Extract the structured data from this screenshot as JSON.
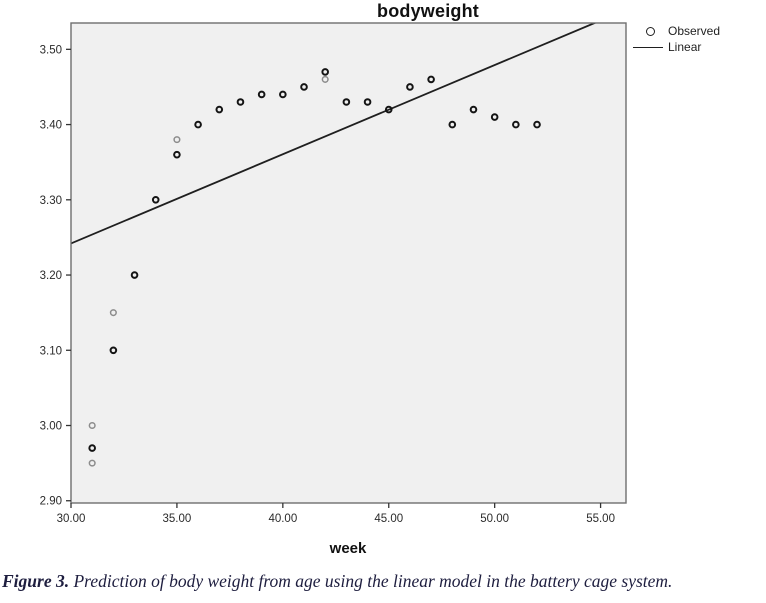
{
  "caption": {
    "label": "Figure 3.",
    "text": "Prediction of body weight from age using the linear model in the battery cage system."
  },
  "colors": {
    "plot_bg": "#f0f0f0",
    "plot_border": "#6e6e6e",
    "fit_line": "#1f1f1f",
    "marker_dark": "#141414",
    "marker_light": "#8c8c8c",
    "tick_mark": "#333333",
    "tick_text": "#2b2b2b"
  },
  "chart_data": {
    "type": "scatter",
    "title": "bodyweight",
    "xlabel": "week",
    "ylabel": "",
    "xlim": [
      30,
      56.2
    ],
    "ylim": [
      2.897,
      3.535
    ],
    "grid": false,
    "legend_position": "top-right-outside",
    "legend": [
      {
        "label": "Observed",
        "marker": "circle"
      },
      {
        "label": "Linear",
        "marker": "line"
      }
    ],
    "x_ticks": [
      "30.00",
      "35.00",
      "40.00",
      "45.00",
      "50.00",
      "55.00"
    ],
    "x_tick_values": [
      30,
      35,
      40,
      45,
      50,
      55
    ],
    "y_ticks": [
      "2.90",
      "3.00",
      "3.10",
      "3.20",
      "3.30",
      "3.40",
      "3.50"
    ],
    "y_tick_values": [
      2.9,
      3.0,
      3.1,
      3.2,
      3.3,
      3.4,
      3.5
    ],
    "series": [
      {
        "name": "Observed",
        "type": "scatter",
        "points": [
          {
            "x": 31,
            "y": 3.0,
            "emphasis": "light"
          },
          {
            "x": 31,
            "y": 2.97,
            "emphasis": "dark"
          },
          {
            "x": 31,
            "y": 2.95,
            "emphasis": "light"
          },
          {
            "x": 32,
            "y": 3.15,
            "emphasis": "light"
          },
          {
            "x": 32,
            "y": 3.1,
            "emphasis": "dark"
          },
          {
            "x": 33,
            "y": 3.2,
            "emphasis": "dark"
          },
          {
            "x": 34,
            "y": 3.3,
            "emphasis": "dark"
          },
          {
            "x": 35,
            "y": 3.38,
            "emphasis": "light"
          },
          {
            "x": 35,
            "y": 3.36,
            "emphasis": "dark"
          },
          {
            "x": 36,
            "y": 3.4,
            "emphasis": "dark"
          },
          {
            "x": 37,
            "y": 3.42,
            "emphasis": "dark"
          },
          {
            "x": 38,
            "y": 3.43,
            "emphasis": "dark"
          },
          {
            "x": 39,
            "y": 3.44,
            "emphasis": "dark"
          },
          {
            "x": 40,
            "y": 3.44,
            "emphasis": "dark"
          },
          {
            "x": 41,
            "y": 3.45,
            "emphasis": "dark"
          },
          {
            "x": 42,
            "y": 3.47,
            "emphasis": "dark"
          },
          {
            "x": 42,
            "y": 3.46,
            "emphasis": "light"
          },
          {
            "x": 43,
            "y": 3.43,
            "emphasis": "dark"
          },
          {
            "x": 44,
            "y": 3.43,
            "emphasis": "dark"
          },
          {
            "x": 45,
            "y": 3.42,
            "emphasis": "dark"
          },
          {
            "x": 46,
            "y": 3.45,
            "emphasis": "dark"
          },
          {
            "x": 47,
            "y": 3.46,
            "emphasis": "dark"
          },
          {
            "x": 48,
            "y": 3.4,
            "emphasis": "dark"
          },
          {
            "x": 49,
            "y": 3.42,
            "emphasis": "dark"
          },
          {
            "x": 50,
            "y": 3.41,
            "emphasis": "dark"
          },
          {
            "x": 51,
            "y": 3.4,
            "emphasis": "dark"
          },
          {
            "x": 52,
            "y": 3.4,
            "emphasis": "dark"
          }
        ]
      },
      {
        "name": "Linear",
        "type": "line",
        "x": [
          30,
          54.8
        ],
        "y": [
          3.242,
          3.536
        ]
      }
    ]
  }
}
